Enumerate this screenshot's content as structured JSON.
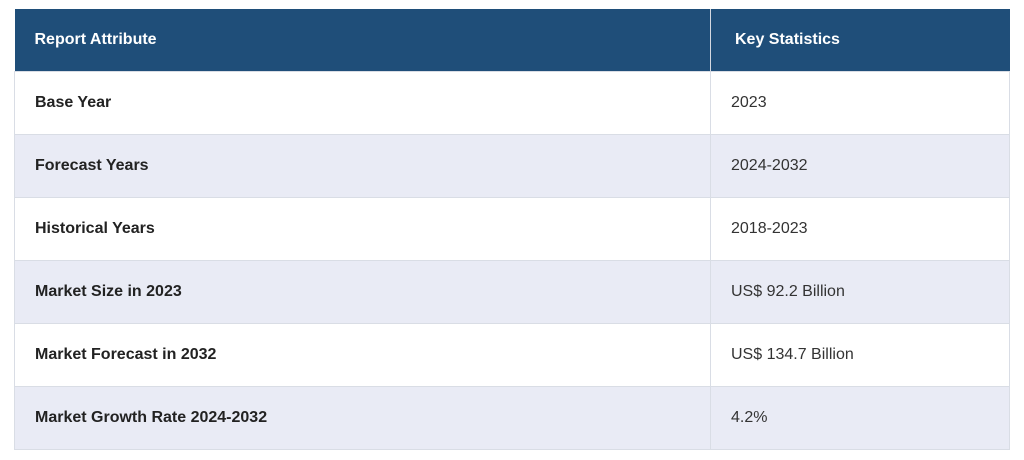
{
  "table": {
    "headers": [
      "Report Attribute",
      "Key Statistics"
    ],
    "rows": [
      {
        "attribute": "Base Year",
        "value": "2023"
      },
      {
        "attribute": "Forecast Years",
        "value": "2024-2032"
      },
      {
        "attribute": "Historical Years",
        "value": "2018-2023"
      },
      {
        "attribute": "Market Size in 2023",
        "value": "US$ 92.2 Billion"
      },
      {
        "attribute": "Market Forecast in 2032",
        "value": "US$ 134.7 Billion"
      },
      {
        "attribute": "Market Growth Rate 2024-2032",
        "value": "4.2%"
      }
    ]
  },
  "colors": {
    "header_bg": "#1f4e79",
    "header_text": "#ffffff",
    "alt_row_bg": "#e9ebf5",
    "row_bg": "#ffffff"
  }
}
